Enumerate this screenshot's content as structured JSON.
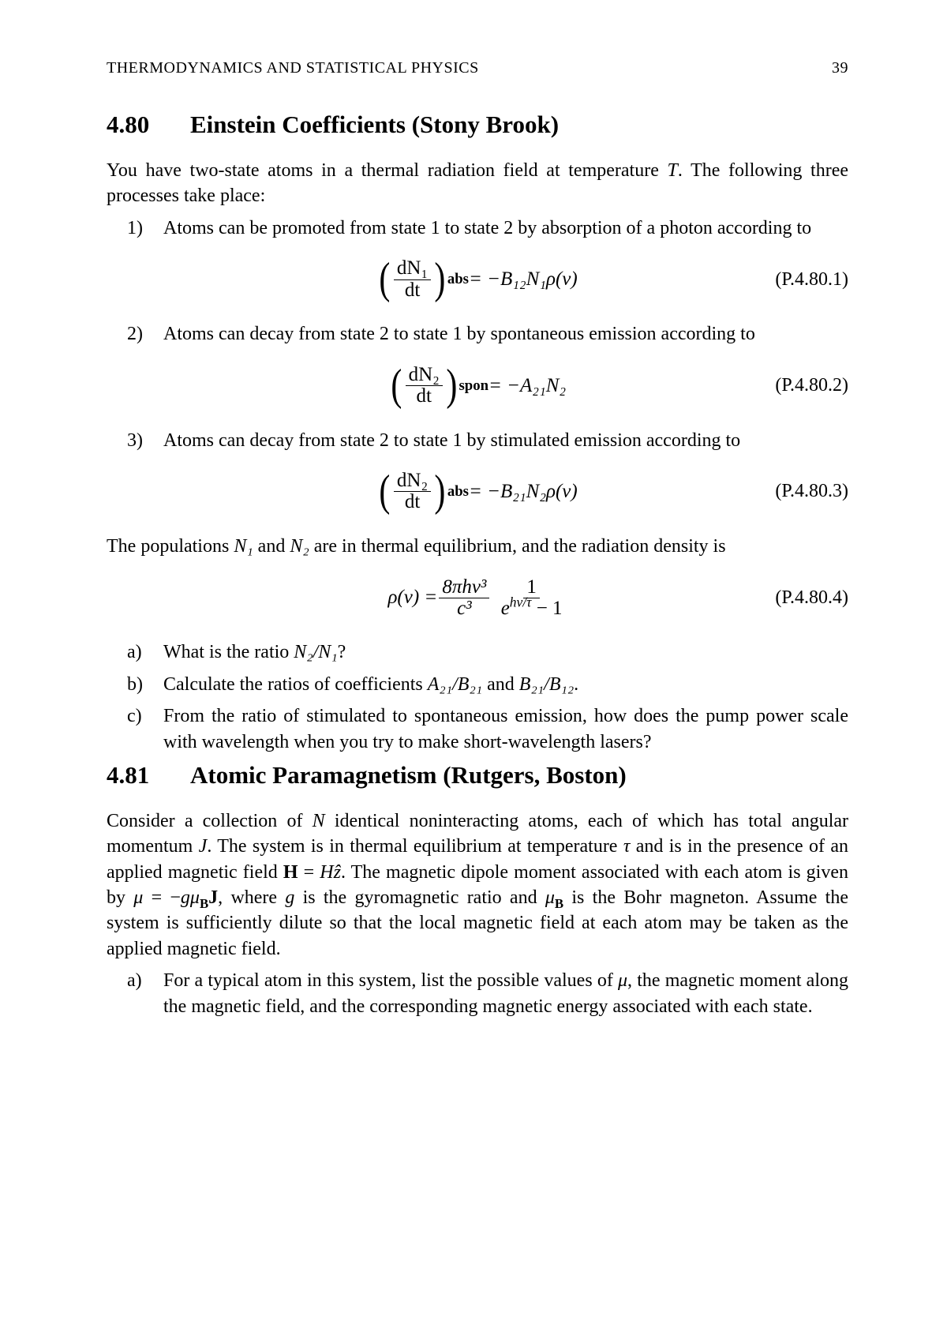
{
  "page": {
    "running_head": "THERMODYNAMICS AND STATISTICAL PHYSICS",
    "page_number": "39"
  },
  "sec480": {
    "number": "4.80",
    "title": "Einstein Coefficients (Stony Brook)",
    "intro_a": "You have two-state atoms in a thermal radiation field at temperature ",
    "intro_b": ". The following three processes take place:",
    "T": "T",
    "item1_marker": "1)",
    "item1_text": "Atoms can be promoted from state 1 to state 2 by absorption of a photon according to",
    "item2_marker": "2)",
    "item2_text": "Atoms can decay from state 2 to state 1 by spontaneous emission according to",
    "item3_marker": "3)",
    "item3_text": "Atoms can decay from state 2 to state 1 by stimulated emission according to",
    "mid_a": "The populations ",
    "mid_b": " and ",
    "mid_c": " are in thermal equilibrium, and the radiation density is",
    "N1": "N₁",
    "N2": "N₂",
    "qa_marker": "a)",
    "qa_text_a": "What is the ratio ",
    "qa_text_b": "?",
    "qa_ratio": "N₂/N₁",
    "qb_marker": "b)",
    "qb_text_a": "Calculate the ratios of coefficients ",
    "qb_r1": "A₂₁/B₂₁",
    "qb_text_b": " and ",
    "qb_r2": "B₂₁/B₁₂",
    "qb_text_c": ".",
    "qc_marker": "c)",
    "qc_text": "From the ratio of stimulated to spontaneous emission, how does the pump power scale with wavelength when you try to make short-wavelength lasers?"
  },
  "eq1": {
    "tag": "(P.4.80.1)",
    "dN1": "dN₁",
    "dt": "dt",
    "sub": "abs",
    "rhs": " = −B₁₂N₁ρ(ν)"
  },
  "eq2": {
    "tag": "(P.4.80.2)",
    "dN2": "dN₂",
    "dt": "dt",
    "sub": "spon",
    "rhs": " = −A₂₁N₂"
  },
  "eq3": {
    "tag": "(P.4.80.3)",
    "dN2": "dN₂",
    "dt": "dt",
    "sub": "abs",
    "rhs": " = −B₂₁N₂ρ(ν)"
  },
  "eq4": {
    "tag": "(P.4.80.4)",
    "lhs": "ρ(ν) = ",
    "num1": "8πhν³",
    "den1": "c³",
    "num2": "1",
    "den2a": "e",
    "den2exp": "hν/τ",
    "den2b": " − 1"
  },
  "sec481": {
    "number": "4.81",
    "title": "Atomic Paramagnetism (Rutgers, Boston)",
    "p1a": "Consider a collection of ",
    "N": "N",
    "p1b": " identical noninteracting atoms, each of which has total angular momentum ",
    "J": "J",
    "p1c": ". The system is in thermal equilibrium at temperature ",
    "tau": "τ",
    "p1d": " and is in the presence of an applied magnetic field ",
    "H": "H",
    "eq": " = ",
    "Hz": "Hẑ",
    "p1e": ". The magnetic dipole moment associated with each atom is given by ",
    "mu": "μ",
    "p1f": " = −",
    "g": "g",
    "muB": "μ",
    "Bsub": "B",
    "Jb": "J",
    "p1g": ", where ",
    "p1h": " is the gyromagnetic ratio and ",
    "p1i": " is the Bohr magneton. Assume the system is sufficiently dilute so that the local magnetic field at each atom may be taken as the applied magnetic field.",
    "qa_marker": "a)",
    "qa_a": "For a typical atom in this system, list the possible values of ",
    "qa_b": ", the magnetic moment along the magnetic field, and the corresponding magnetic energy associated with each state."
  }
}
